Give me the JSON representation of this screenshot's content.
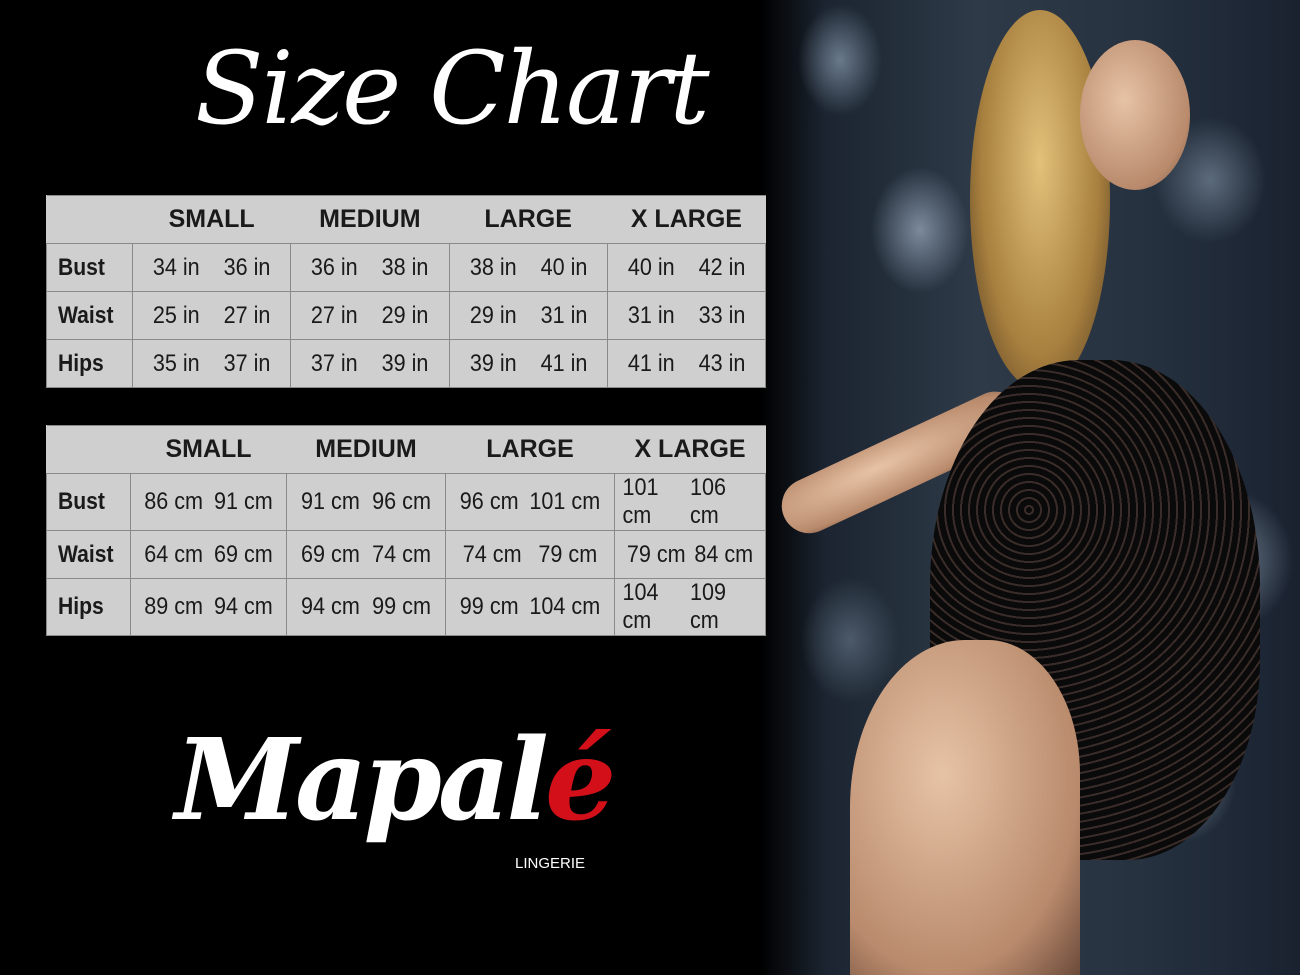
{
  "title": "Size Chart",
  "sizes": [
    "SMALL",
    "MEDIUM",
    "LARGE",
    "X LARGE"
  ],
  "inches": {
    "rows": [
      {
        "label": "Bust",
        "values": [
          "34 in",
          "36 in",
          "36 in",
          "38 in",
          "38 in",
          "40 in",
          "40 in",
          "42 in"
        ]
      },
      {
        "label": "Waist",
        "values": [
          "25 in",
          "27 in",
          "27 in",
          "29 in",
          "29 in",
          "31 in",
          "31 in",
          "33 in"
        ]
      },
      {
        "label": "Hips",
        "values": [
          "35 in",
          "37 in",
          "37 in",
          "39 in",
          "39 in",
          "41 in",
          "41 in",
          "43 in"
        ]
      }
    ]
  },
  "cm": {
    "rows": [
      {
        "label": "Bust",
        "values": [
          "86 cm",
          "91 cm",
          "91 cm",
          "96 cm",
          "96 cm",
          "101 cm",
          "101 cm",
          "106 cm"
        ]
      },
      {
        "label": "Waist",
        "values": [
          "64 cm",
          "69 cm",
          "69 cm",
          "74 cm",
          "74 cm",
          "79  cm",
          "79 cm",
          "84 cm"
        ]
      },
      {
        "label": "Hips",
        "values": [
          "89 cm",
          "94 cm",
          "94 cm",
          "99 cm",
          "99 cm",
          "104 cm",
          "104 cm",
          "109 cm"
        ]
      }
    ]
  },
  "brand": {
    "name": "Mapal",
    "accent_letter": "é",
    "tagline": "LINGERIE",
    "accent_color": "#d3101a"
  }
}
